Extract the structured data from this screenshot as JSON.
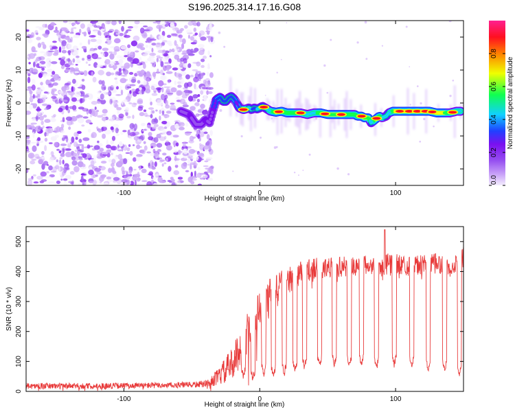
{
  "chart_data": [
    {
      "type": "heatmap",
      "title": "S196.2025.314.17.16.G08",
      "xlabel": "Height of straight line (km)",
      "ylabel": "Frequency (Hz)",
      "xlim": [
        -172,
        150
      ],
      "ylim": [
        -25,
        25
      ],
      "x_ticks": [
        -100,
        0,
        100
      ],
      "x_tick_labels": [
        "-100",
        "0",
        "100"
      ],
      "y_ticks": [
        -20,
        -10,
        0,
        10,
        20
      ],
      "y_tick_labels": [
        "-20",
        "-10",
        "0",
        "10",
        "20"
      ],
      "noise_region_x": [
        -172,
        -35
      ],
      "ridge": {
        "x": [
          -58,
          -52,
          -47,
          -43,
          -40,
          -37,
          -35,
          -32,
          -29,
          -27,
          -25,
          -23,
          -21,
          -19,
          -17,
          -15,
          -12,
          -10,
          -8,
          -6,
          -4,
          -2,
          0,
          2,
          4,
          8,
          12,
          16,
          20,
          25,
          30,
          35,
          40,
          45,
          50,
          55,
          60,
          65,
          70,
          72,
          75,
          77,
          80,
          82,
          85,
          88,
          90,
          93,
          95,
          98,
          100,
          105,
          110,
          115,
          120,
          125,
          130,
          135,
          140,
          145,
          148
        ],
        "y": [
          -2.5,
          -3.5,
          -6.5,
          -6.5,
          -5.0,
          -6.0,
          -3.0,
          1.0,
          1.8,
          0.5,
          0.5,
          1.5,
          2.0,
          1.2,
          0.0,
          -1.5,
          -2.0,
          -1.8,
          -1.5,
          -2.0,
          -1.5,
          -1.8,
          -1.5,
          -1.0,
          -1.5,
          -2.5,
          -2.8,
          -2.5,
          -3.0,
          -3.0,
          -3.0,
          -3.5,
          -3.0,
          -3.0,
          -3.5,
          -3.5,
          -3.5,
          -3.5,
          -3.5,
          -4.0,
          -4.0,
          -4.5,
          -4.5,
          -6.0,
          -5.0,
          -4.0,
          -4.5,
          -4.0,
          -3.0,
          -2.5,
          -2.5,
          -2.5,
          -2.5,
          -2.5,
          -2.5,
          -2.5,
          -3.0,
          -3.0,
          -3.0,
          -2.5,
          -2.5
        ],
        "amplitude": [
          0.25,
          0.35,
          0.3,
          0.32,
          0.35,
          0.3,
          0.3,
          0.45,
          0.55,
          0.55,
          0.55,
          0.55,
          0.55,
          0.55,
          0.4,
          0.5,
          0.7,
          0.75,
          0.6,
          0.6,
          0.55,
          0.6,
          0.6,
          0.6,
          0.6,
          0.7,
          0.85,
          0.85,
          0.8,
          0.8,
          0.7,
          0.7,
          0.7,
          0.8,
          0.85,
          0.85,
          0.85,
          0.8,
          0.75,
          0.8,
          0.8,
          0.85,
          0.85,
          0.6,
          0.85,
          0.8,
          0.75,
          0.6,
          0.6,
          0.8,
          0.9,
          0.9,
          0.9,
          0.9,
          0.9,
          0.9,
          0.9,
          0.9,
          0.7,
          0.7,
          0.7
        ]
      },
      "hot_spots": [
        -12,
        3,
        14,
        30,
        48,
        60,
        75,
        86,
        103,
        110,
        116,
        122,
        127,
        142
      ],
      "colorbar": {
        "label": "Normalized spectral amplitude",
        "range": [
          0,
          1
        ],
        "ticks": [
          0.0,
          0.2,
          0.4,
          0.6,
          0.8
        ],
        "tick_labels": [
          "0.0",
          "0.2",
          "0.4",
          "0.6",
          "0.8"
        ],
        "colors": [
          "#f4eefe",
          "#c8a0f8",
          "#9650f0",
          "#7a10f0",
          "#2040ff",
          "#10d0ff",
          "#10ff50",
          "#f0ff00",
          "#ff8000",
          "#ff1020",
          "#ff2090"
        ]
      }
    },
    {
      "type": "line",
      "xlabel": "Height of straight line (km)",
      "ylabel": "SNR (10 * v/v)",
      "xlim": [
        -172,
        150
      ],
      "ylim": [
        0,
        550
      ],
      "x_ticks": [
        -100,
        0,
        100
      ],
      "x_tick_labels": [
        "-100",
        "0",
        "100"
      ],
      "y_ticks": [
        0,
        100,
        200,
        300,
        400,
        500
      ],
      "y_tick_labels": [
        "0",
        "100",
        "200",
        "300",
        "400",
        "500"
      ],
      "series": [
        {
          "name": "SNR",
          "color": "#e83a3a",
          "envelope_x": [
            -172,
            -120,
            -80,
            -50,
            -40,
            -35,
            -30,
            -25,
            -20,
            -15,
            -10,
            -5,
            0,
            5,
            10,
            15,
            20,
            25,
            30,
            40,
            50,
            60,
            70,
            80,
            90,
            100,
            110,
            120,
            130,
            140,
            145,
            150
          ],
          "envelope_y": [
            18,
            18,
            20,
            22,
            25,
            35,
            50,
            70,
            95,
            140,
            190,
            230,
            260,
            300,
            330,
            360,
            370,
            380,
            395,
            410,
            415,
            415,
            420,
            420,
            420,
            425,
            420,
            420,
            425,
            415,
            435,
            450
          ],
          "noise_amplitude": [
            10,
            10,
            10,
            10,
            12,
            18,
            30,
            45,
            55,
            65,
            70,
            75,
            75,
            70,
            60,
            55,
            45,
            45,
            40,
            35,
            35,
            35,
            35,
            35,
            40,
            35,
            35,
            35,
            35,
            35,
            35,
            35
          ],
          "dips_x": [
            -12,
            -5,
            3,
            10,
            18,
            26,
            33,
            44,
            55,
            66,
            75,
            86,
            99,
            112,
            124,
            136,
            147
          ],
          "dips_y": [
            50,
            40,
            55,
            50,
            60,
            70,
            80,
            85,
            90,
            85,
            90,
            80,
            90,
            85,
            75,
            70,
            60
          ],
          "peak_max": {
            "x": 92,
            "y": 540
          }
        }
      ]
    }
  ]
}
